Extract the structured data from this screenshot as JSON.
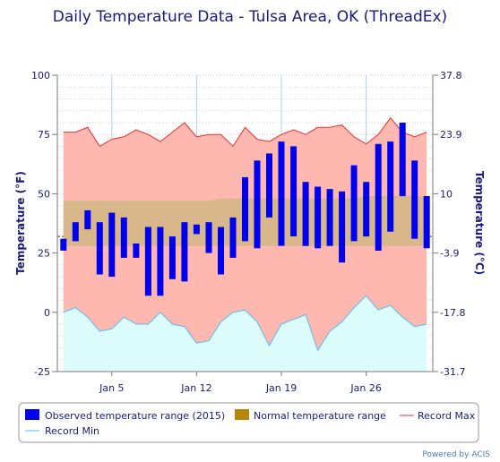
{
  "colors": {
    "observed": "#0000ee",
    "normal_fill": "#d8b88a",
    "normal_legend": "#b8860b",
    "record_max_fill": "#ffb8b0",
    "record_max_line": "#e83030",
    "record_min_fill": "#dcfbfb",
    "record_min_line": "#55bbee",
    "grid": "#aad4e8",
    "text": "#1a1a7a"
  },
  "chart_data": {
    "type": "bar",
    "title": "Daily Temperature Data - Tulsa Area, OK (ThreadEx)",
    "ylabel": "Temperature (°F)",
    "ylabel_right": "Temperature (°C)",
    "ylim": [
      -25,
      100
    ],
    "y_ticks": [
      -25,
      0,
      25,
      50,
      75,
      100
    ],
    "y_ticks_right": [
      "-31.7",
      "-17.8",
      "-3.9",
      "10",
      "23.9",
      "37.8"
    ],
    "x_ticks": [
      {
        "day": 5,
        "label": "Jan 5"
      },
      {
        "day": 12,
        "label": "Jan 12"
      },
      {
        "day": 19,
        "label": "Jan 19"
      },
      {
        "day": 26,
        "label": "Jan 26"
      }
    ],
    "days": [
      1,
      2,
      3,
      4,
      5,
      6,
      7,
      8,
      9,
      10,
      11,
      12,
      13,
      14,
      15,
      16,
      17,
      18,
      19,
      20,
      21,
      22,
      23,
      24,
      25,
      26,
      27,
      28,
      29,
      30,
      31
    ],
    "series": [
      {
        "name": "Observed temperature range (2015)",
        "low": [
          26,
          30,
          35,
          16,
          15,
          23,
          23,
          7,
          7,
          14,
          13,
          33,
          25,
          16,
          23,
          30,
          27,
          40,
          28,
          32,
          28,
          27,
          28,
          21,
          30,
          32,
          26,
          34,
          49,
          31,
          27
        ],
        "high": [
          31,
          38,
          43,
          38,
          42,
          40,
          29,
          36,
          36,
          32,
          38,
          37,
          38,
          36,
          40,
          57,
          64,
          67,
          72,
          70,
          55,
          53,
          52,
          51,
          62,
          55,
          71,
          72,
          80,
          64,
          49
        ]
      },
      {
        "name": "Normal temperature range",
        "low": [
          28,
          28,
          28,
          28,
          28,
          28,
          28,
          28,
          28,
          28,
          28,
          28,
          28,
          28,
          28,
          28,
          28,
          28,
          28,
          28,
          28,
          28,
          28,
          28,
          28,
          28,
          28,
          28,
          28,
          28,
          28
        ],
        "high": [
          47,
          47,
          47,
          47,
          47,
          47,
          47,
          47,
          47,
          47,
          47,
          47,
          47,
          48,
          48,
          48,
          48,
          48,
          48,
          48,
          48,
          48,
          48,
          48,
          48,
          49,
          49,
          49,
          49,
          49,
          49
        ]
      },
      {
        "name": "Record Max",
        "values": [
          76,
          76,
          78,
          70,
          73,
          74,
          77,
          75,
          72,
          76,
          80,
          74,
          75,
          75,
          70,
          78,
          73,
          72,
          75,
          77,
          75,
          78,
          78,
          79,
          74,
          71,
          75,
          82,
          76,
          74,
          76
        ]
      },
      {
        "name": "Record Min",
        "values": [
          0,
          2,
          -2,
          -8,
          -7,
          -2,
          -5,
          -5,
          0,
          -5,
          -6,
          -13,
          -12,
          -4,
          0,
          1,
          -4,
          -14,
          -5,
          -3,
          -1,
          -16,
          -8,
          -4,
          2,
          7,
          1,
          3,
          -2,
          -6,
          -5
        ]
      }
    ],
    "legend_position": "bottom",
    "grid": true
  },
  "legend": {
    "observed": "Observed temperature range (2015)",
    "normal": "Normal temperature range",
    "record_max": "Record Max",
    "record_min": "Record Min"
  },
  "credit": "Powered by ACIS"
}
